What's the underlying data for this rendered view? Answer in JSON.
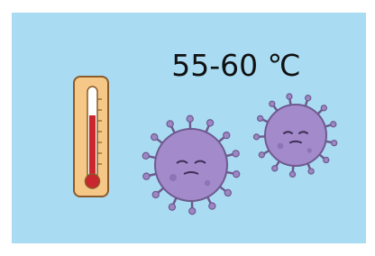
{
  "caption": "55-60 ℃"
}
